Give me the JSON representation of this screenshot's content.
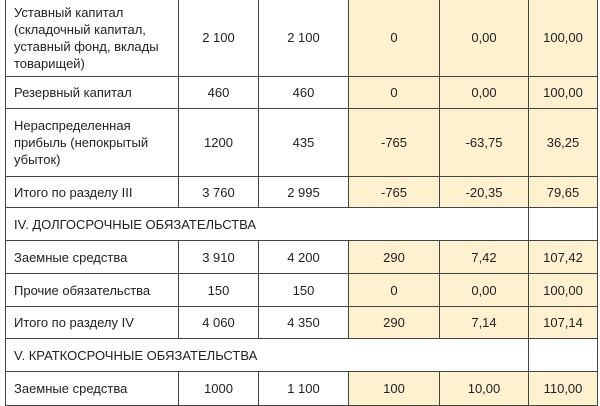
{
  "rows": [
    {
      "type": "data",
      "label": "Уставный капитал (складочный капитал, уставный фонд, вклады товарищей)",
      "v": [
        "2 100",
        "2 100",
        "0",
        "0,00",
        "100,00"
      ]
    },
    {
      "type": "data",
      "label": "Резервный капитал",
      "v": [
        "460",
        "460",
        "0",
        "0,00",
        "100,00"
      ]
    },
    {
      "type": "data",
      "label": "Нераспределенная прибыль (непокрытый убыток)",
      "v": [
        "1200",
        "435",
        "-765",
        "-63,75",
        "36,25"
      ]
    },
    {
      "type": "data",
      "label": "Итого по разделу III",
      "v": [
        "3 760",
        "2 995",
        "-765",
        "-20,35",
        "79,65"
      ]
    },
    {
      "type": "section",
      "label": "IV. ДОЛГОСРОЧНЫЕ ОБЯЗАТЕЛЬСТВА"
    },
    {
      "type": "data",
      "label": "Заемные средства",
      "v": [
        "3 910",
        "4 200",
        "290",
        "7,42",
        "107,42"
      ]
    },
    {
      "type": "data",
      "label": "Прочие обязательства",
      "v": [
        "150",
        "150",
        "0",
        "0,00",
        "100,00"
      ]
    },
    {
      "type": "data",
      "label": "Итого по разделу IV",
      "v": [
        "4 060",
        "4 350",
        "290",
        "7,14",
        "107,14"
      ]
    },
    {
      "type": "section",
      "label": "V. КРАТКОСРОЧНЫЕ ОБЯЗАТЕЛЬСТВА"
    },
    {
      "type": "data",
      "label": "Заемные средства",
      "v": [
        "1000",
        "1 100",
        "100",
        "10,00",
        "110,00"
      ]
    }
  ],
  "colors": {
    "highlight": "#fdf1d0",
    "border": "#444444"
  }
}
